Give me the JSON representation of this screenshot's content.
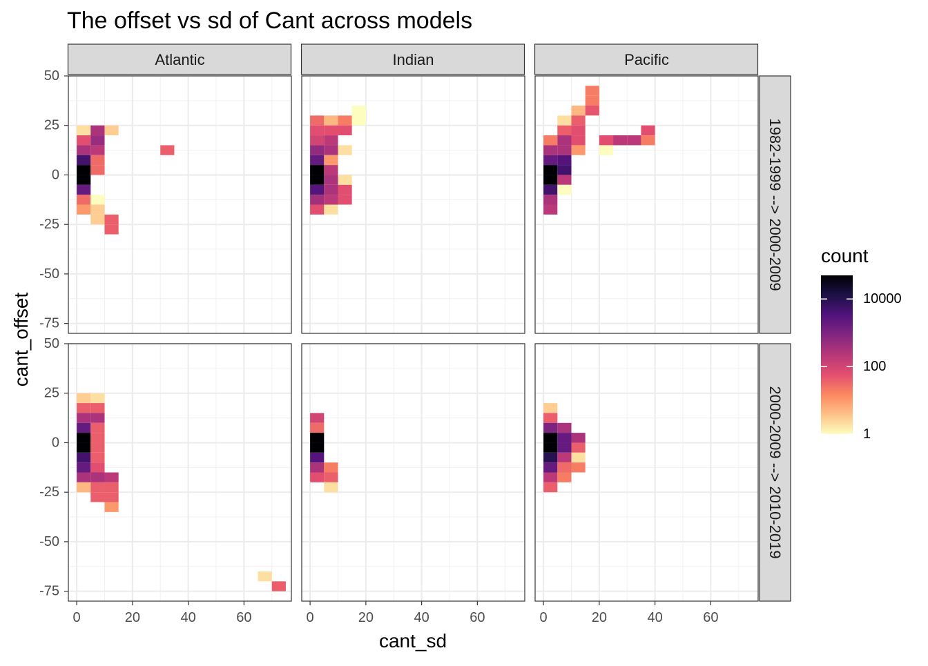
{
  "chart_data": {
    "type": "heatmap",
    "title": "The offset vs sd of Cant across models",
    "xlabel": "cant_sd",
    "ylabel": "cant_offset",
    "xlim": [
      -3,
      77
    ],
    "ylim": [
      -80,
      50
    ],
    "x_ticks": [
      0,
      20,
      40,
      60
    ],
    "y_ticks": [
      -75,
      -50,
      -25,
      0,
      25,
      50
    ],
    "bin_width": 5,
    "bin_height": 5,
    "grid": true,
    "legend": {
      "title": "count",
      "position": "right",
      "scale": "log10",
      "breaks": [
        1,
        100,
        10000
      ],
      "labels": [
        "1",
        "100",
        "10000"
      ],
      "range": [
        1,
        50000
      ],
      "colors": [
        "#fcfdbf",
        "#fec287",
        "#fb8861",
        "#e34f6f",
        "#b73779",
        "#822681",
        "#51127c",
        "#1d1147",
        "#000004"
      ]
    },
    "col_facets": [
      "Atlantic",
      "Indian",
      "Pacific"
    ],
    "row_facets": [
      "1982-1999 --> 2000-2009",
      "2000-2009 --> 2010-2019"
    ],
    "panels": [
      {
        "col": "Atlantic",
        "row": "1982-1999 --> 2000-2009",
        "tiles": [
          [
            2.5,
            22.5,
            2
          ],
          [
            2.5,
            17.5,
            60
          ],
          [
            2.5,
            12.5,
            300
          ],
          [
            2.5,
            7.5,
            5000
          ],
          [
            2.5,
            2.5,
            50000
          ],
          [
            2.5,
            -2.5,
            50000
          ],
          [
            2.5,
            -7.5,
            2000
          ],
          [
            2.5,
            -12.5,
            30
          ],
          [
            2.5,
            -17.5,
            10
          ],
          [
            7.5,
            22.5,
            300
          ],
          [
            7.5,
            17.5,
            500
          ],
          [
            7.5,
            12.5,
            200
          ],
          [
            7.5,
            7.5,
            30
          ],
          [
            7.5,
            2.5,
            30
          ],
          [
            7.5,
            -12.5,
            1
          ],
          [
            7.5,
            -17.5,
            3
          ],
          [
            7.5,
            -22.5,
            3
          ],
          [
            12.5,
            22.5,
            3
          ],
          [
            12.5,
            -22.5,
            40
          ],
          [
            12.5,
            -27.5,
            40
          ],
          [
            32.5,
            12.5,
            40
          ]
        ]
      },
      {
        "col": "Indian",
        "row": "1982-1999 --> 2000-2009",
        "tiles": [
          [
            2.5,
            27.5,
            30
          ],
          [
            2.5,
            22.5,
            60
          ],
          [
            2.5,
            17.5,
            100
          ],
          [
            2.5,
            12.5,
            600
          ],
          [
            2.5,
            7.5,
            2000
          ],
          [
            2.5,
            2.5,
            50000
          ],
          [
            2.5,
            -2.5,
            50000
          ],
          [
            2.5,
            -7.5,
            3000
          ],
          [
            2.5,
            -12.5,
            400
          ],
          [
            2.5,
            -17.5,
            60
          ],
          [
            7.5,
            27.5,
            5
          ],
          [
            7.5,
            22.5,
            60
          ],
          [
            7.5,
            17.5,
            200
          ],
          [
            7.5,
            12.5,
            300
          ],
          [
            7.5,
            7.5,
            10
          ],
          [
            7.5,
            2.5,
            200
          ],
          [
            7.5,
            -2.5,
            300
          ],
          [
            7.5,
            -7.5,
            300
          ],
          [
            7.5,
            -12.5,
            200
          ],
          [
            7.5,
            -17.5,
            2
          ],
          [
            12.5,
            27.5,
            20
          ],
          [
            12.5,
            22.5,
            60
          ],
          [
            12.5,
            12.5,
            2
          ],
          [
            12.5,
            -2.5,
            2
          ],
          [
            12.5,
            -7.5,
            60
          ],
          [
            12.5,
            -12.5,
            60
          ],
          [
            17.5,
            32.5,
            1
          ],
          [
            17.5,
            27.5,
            1
          ]
        ]
      },
      {
        "col": "Pacific",
        "row": "1982-1999 --> 2000-2009",
        "tiles": [
          [
            2.5,
            17.5,
            20
          ],
          [
            2.5,
            12.5,
            300
          ],
          [
            2.5,
            7.5,
            2000
          ],
          [
            2.5,
            2.5,
            50000
          ],
          [
            2.5,
            -2.5,
            50000
          ],
          [
            2.5,
            -7.5,
            5000
          ],
          [
            2.5,
            -12.5,
            300
          ],
          [
            2.5,
            -17.5,
            200
          ],
          [
            7.5,
            27.5,
            2
          ],
          [
            7.5,
            22.5,
            40
          ],
          [
            7.5,
            17.5,
            300
          ],
          [
            7.5,
            12.5,
            300
          ],
          [
            7.5,
            7.5,
            3000
          ],
          [
            7.5,
            2.5,
            5000
          ],
          [
            7.5,
            -2.5,
            200
          ],
          [
            7.5,
            -7.5,
            1
          ],
          [
            12.5,
            32.5,
            5
          ],
          [
            12.5,
            27.5,
            40
          ],
          [
            12.5,
            22.5,
            60
          ],
          [
            12.5,
            17.5,
            60
          ],
          [
            12.5,
            12.5,
            10
          ],
          [
            17.5,
            42.5,
            20
          ],
          [
            17.5,
            37.5,
            20
          ],
          [
            17.5,
            32.5,
            50
          ],
          [
            22.5,
            17.5,
            60
          ],
          [
            22.5,
            12.5,
            1
          ],
          [
            27.5,
            17.5,
            200
          ],
          [
            32.5,
            17.5,
            200
          ],
          [
            37.5,
            22.5,
            60
          ],
          [
            37.5,
            17.5,
            20
          ]
        ]
      },
      {
        "col": "Atlantic",
        "row": "2000-2009 --> 2010-2019",
        "tiles": [
          [
            2.5,
            22.5,
            3
          ],
          [
            2.5,
            17.5,
            40
          ],
          [
            2.5,
            12.5,
            300
          ],
          [
            2.5,
            7.5,
            2000
          ],
          [
            2.5,
            2.5,
            50000
          ],
          [
            2.5,
            -2.5,
            50000
          ],
          [
            2.5,
            -7.5,
            5000
          ],
          [
            2.5,
            -12.5,
            2000
          ],
          [
            2.5,
            -17.5,
            300
          ],
          [
            2.5,
            -22.5,
            5
          ],
          [
            7.5,
            22.5,
            2
          ],
          [
            7.5,
            17.5,
            40
          ],
          [
            7.5,
            12.5,
            300
          ],
          [
            7.5,
            7.5,
            40
          ],
          [
            7.5,
            2.5,
            40
          ],
          [
            7.5,
            -2.5,
            40
          ],
          [
            7.5,
            -7.5,
            40
          ],
          [
            7.5,
            -12.5,
            60
          ],
          [
            7.5,
            -17.5,
            300
          ],
          [
            7.5,
            -22.5,
            40
          ],
          [
            7.5,
            -27.5,
            40
          ],
          [
            12.5,
            -17.5,
            200
          ],
          [
            12.5,
            -22.5,
            40
          ],
          [
            12.5,
            -27.5,
            40
          ],
          [
            12.5,
            -32.5,
            10
          ],
          [
            67.5,
            -67.5,
            2
          ],
          [
            72.5,
            -72.5,
            40
          ]
        ]
      },
      {
        "col": "Indian",
        "row": "2000-2009 --> 2010-2019",
        "tiles": [
          [
            2.5,
            12.5,
            100
          ],
          [
            2.5,
            7.5,
            30
          ],
          [
            2.5,
            2.5,
            50000
          ],
          [
            2.5,
            -2.5,
            50000
          ],
          [
            2.5,
            -7.5,
            3000
          ],
          [
            2.5,
            -12.5,
            300
          ],
          [
            2.5,
            -17.5,
            60
          ],
          [
            7.5,
            -12.5,
            20
          ],
          [
            7.5,
            -17.5,
            40
          ],
          [
            7.5,
            -22.5,
            2
          ]
        ]
      },
      {
        "col": "Pacific",
        "row": "2000-2009 --> 2010-2019",
        "tiles": [
          [
            2.5,
            17.5,
            3
          ],
          [
            2.5,
            12.5,
            40
          ],
          [
            2.5,
            7.5,
            1000
          ],
          [
            2.5,
            2.5,
            50000
          ],
          [
            2.5,
            -2.5,
            50000
          ],
          [
            2.5,
            -7.5,
            10000
          ],
          [
            2.5,
            -12.5,
            2000
          ],
          [
            2.5,
            -17.5,
            200
          ],
          [
            2.5,
            -22.5,
            40
          ],
          [
            7.5,
            7.5,
            300
          ],
          [
            7.5,
            2.5,
            2000
          ],
          [
            7.5,
            -2.5,
            2000
          ],
          [
            7.5,
            -7.5,
            200
          ],
          [
            7.5,
            -12.5,
            30
          ],
          [
            7.5,
            -17.5,
            20
          ],
          [
            12.5,
            2.5,
            300
          ],
          [
            12.5,
            -2.5,
            40
          ],
          [
            12.5,
            -7.5,
            2
          ],
          [
            12.5,
            -12.5,
            20
          ]
        ]
      }
    ]
  }
}
